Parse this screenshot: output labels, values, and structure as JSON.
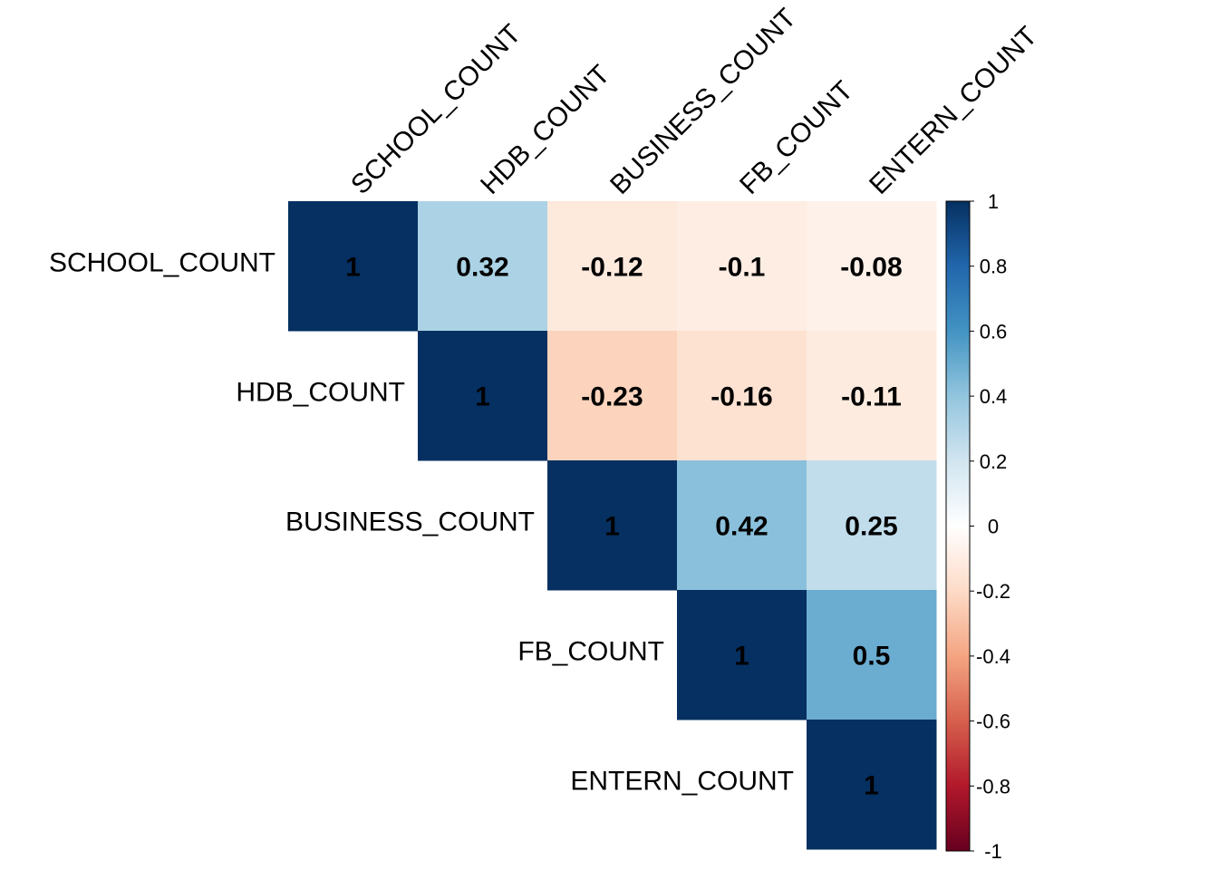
{
  "chart_data": {
    "type": "heatmap",
    "variables": [
      "SCHOOL_COUNT",
      "HDB_COUNT",
      "BUSINESS_COUNT",
      "FB_COUNT",
      "ENTERN_COUNT"
    ],
    "matrix": [
      [
        1,
        0.32,
        -0.12,
        -0.1,
        -0.08
      ],
      [
        0.32,
        1,
        -0.23,
        -0.16,
        -0.11
      ],
      [
        -0.12,
        -0.23,
        1,
        0.42,
        0.25
      ],
      [
        -0.1,
        -0.16,
        0.42,
        1,
        0.5
      ],
      [
        -0.08,
        -0.11,
        0.25,
        0.5,
        1
      ]
    ],
    "cell_labels": [
      [
        "1",
        "0.32",
        "-0.12",
        "-0.1",
        "-0.08"
      ],
      [
        "",
        "1",
        "-0.23",
        "-0.16",
        "-0.11"
      ],
      [
        "",
        "",
        "1",
        "0.42",
        "0.25"
      ],
      [
        "",
        "",
        "",
        "1",
        "0.5"
      ],
      [
        "",
        "",
        "",
        "",
        "1"
      ]
    ],
    "display": "upper-triangle",
    "colorbar": {
      "range": [
        -1,
        1
      ],
      "ticks": [
        1,
        0.8,
        0.6,
        0.4,
        0.2,
        0,
        -0.2,
        -0.4,
        -0.6,
        -0.8,
        -1
      ],
      "tick_labels": [
        "1",
        "0.8",
        "0.6",
        "0.4",
        "0.2",
        "0",
        "-0.2",
        "-0.4",
        "-0.6",
        "-0.8",
        "-1"
      ],
      "placement": "right"
    },
    "colors": {
      "neg_strong": "#67001F",
      "neutral": "#FFFFFF",
      "pos_strong": "#053061"
    },
    "title": "",
    "xlabel": "",
    "ylabel": ""
  }
}
